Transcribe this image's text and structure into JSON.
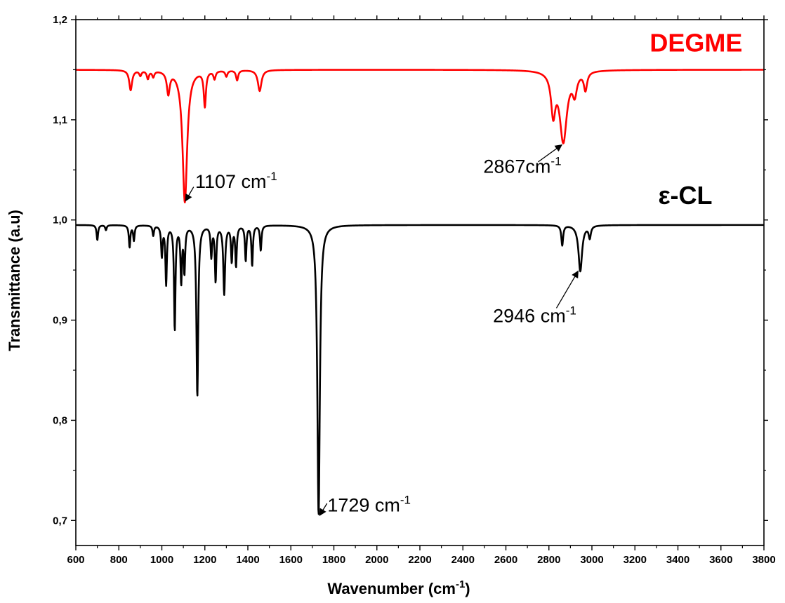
{
  "chart_data": {
    "type": "line",
    "xlabel": "Wavenumber (cm",
    "xlabel_sup": "-1",
    "xlabel_end": ")",
    "ylabel": "Transmittance (a.u)",
    "xlim": [
      600,
      3800
    ],
    "ylim": [
      0.675,
      1.2
    ],
    "x_ticks": [
      "600",
      "800",
      "1000",
      "1200",
      "1400",
      "1600",
      "1800",
      "2000",
      "2200",
      "2400",
      "2600",
      "2800",
      "3000",
      "3200",
      "3400",
      "3600",
      "3800"
    ],
    "y_ticks": [
      "0,7",
      "0,8",
      "0,9",
      "1,0",
      "1,1",
      "1,2"
    ],
    "grid": false,
    "series": [
      {
        "name": "DEGME",
        "color": "#ff0000",
        "baseline": 1.15,
        "peaks": [
          {
            "x": 855,
            "depth": 0.02,
            "w": 8
          },
          {
            "x": 900,
            "depth": 0.005,
            "w": 6
          },
          {
            "x": 935,
            "depth": 0.008,
            "w": 6
          },
          {
            "x": 960,
            "depth": 0.006,
            "w": 6
          },
          {
            "x": 1030,
            "depth": 0.022,
            "w": 8
          },
          {
            "x": 1107,
            "depth": 0.132,
            "w": 13
          },
          {
            "x": 1200,
            "depth": 0.035,
            "w": 6
          },
          {
            "x": 1245,
            "depth": 0.008,
            "w": 6
          },
          {
            "x": 1300,
            "depth": 0.006,
            "w": 6
          },
          {
            "x": 1350,
            "depth": 0.01,
            "w": 6
          },
          {
            "x": 1455,
            "depth": 0.021,
            "w": 10
          },
          {
            "x": 2820,
            "depth": 0.04,
            "w": 12
          },
          {
            "x": 2867,
            "depth": 0.07,
            "w": 20
          },
          {
            "x": 2920,
            "depth": 0.02,
            "w": 12
          },
          {
            "x": 2970,
            "depth": 0.018,
            "w": 9
          }
        ]
      },
      {
        "name": "ε-CL",
        "color": "#000000",
        "baseline": 0.995,
        "peaks": [
          {
            "x": 700,
            "depth": 0.015,
            "w": 4
          },
          {
            "x": 740,
            "depth": 0.005,
            "w": 4
          },
          {
            "x": 850,
            "depth": 0.022,
            "w": 4
          },
          {
            "x": 870,
            "depth": 0.015,
            "w": 4
          },
          {
            "x": 960,
            "depth": 0.01,
            "w": 4
          },
          {
            "x": 1000,
            "depth": 0.03,
            "w": 4
          },
          {
            "x": 1020,
            "depth": 0.058,
            "w": 4
          },
          {
            "x": 1060,
            "depth": 0.104,
            "w": 4
          },
          {
            "x": 1090,
            "depth": 0.055,
            "w": 4
          },
          {
            "x": 1105,
            "depth": 0.045,
            "w": 4
          },
          {
            "x": 1165,
            "depth": 0.171,
            "w": 5
          },
          {
            "x": 1230,
            "depth": 0.03,
            "w": 4
          },
          {
            "x": 1250,
            "depth": 0.055,
            "w": 4
          },
          {
            "x": 1290,
            "depth": 0.068,
            "w": 5
          },
          {
            "x": 1325,
            "depth": 0.035,
            "w": 4
          },
          {
            "x": 1345,
            "depth": 0.04,
            "w": 4
          },
          {
            "x": 1390,
            "depth": 0.035,
            "w": 4
          },
          {
            "x": 1420,
            "depth": 0.04,
            "w": 4
          },
          {
            "x": 1460,
            "depth": 0.025,
            "w": 4
          },
          {
            "x": 1729,
            "depth": 0.29,
            "w": 7
          },
          {
            "x": 2862,
            "depth": 0.02,
            "w": 5
          },
          {
            "x": 2946,
            "depth": 0.046,
            "w": 10
          },
          {
            "x": 2990,
            "depth": 0.012,
            "w": 6
          }
        ]
      }
    ],
    "series_labels": [
      {
        "text": "DEGME",
        "color": "#ff0000",
        "x": 3700,
        "y": 1.168
      },
      {
        "text": "ε-CL",
        "color": "#000000",
        "x": 3560,
        "y": 1.016
      }
    ],
    "annotations": [
      {
        "text": "1107 cm",
        "sup": "-1",
        "label_x": 1155,
        "label_y": 1.032,
        "arrow_from_x": 1148,
        "arrow_from_y": 1.033,
        "arrow_to_x": 1110,
        "arrow_to_y": 1.019
      },
      {
        "text": "2867cm",
        "sup": "-1",
        "label_x": 2495,
        "label_y": 1.047,
        "arrow_from_x": 2750,
        "arrow_from_y": 1.058,
        "arrow_to_x": 2860,
        "arrow_to_y": 1.075
      },
      {
        "text": "1729 cm",
        "sup": "-1",
        "label_x": 1770,
        "label_y": 0.709,
        "arrow_from_x": 1768,
        "arrow_from_y": 0.717,
        "arrow_to_x": 1734,
        "arrow_to_y": 0.705
      },
      {
        "text": "2946 cm",
        "sup": "-1",
        "label_x": 2540,
        "label_y": 0.898,
        "arrow_from_x": 2835,
        "arrow_from_y": 0.912,
        "arrow_to_x": 2936,
        "arrow_to_y": 0.949
      }
    ]
  }
}
